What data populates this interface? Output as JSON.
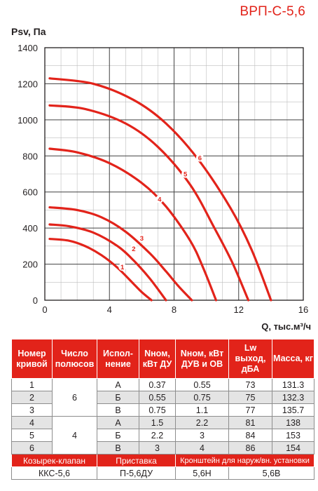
{
  "title": "ВРП-С-5,6",
  "chart_data": {
    "type": "line",
    "ylabel": "Psv, Па",
    "xlabel": "Q, тыс.м³/ч",
    "xlim": [
      0,
      16
    ],
    "ylim": [
      0,
      1400
    ],
    "xticks": [
      "0",
      "4",
      "8",
      "12",
      "16"
    ],
    "yticks": [
      "0",
      "200",
      "400",
      "600",
      "800",
      "1000",
      "1200",
      "1400"
    ],
    "grid": true,
    "series": [
      {
        "name": "1",
        "x": [
          0.3,
          1.5,
          2.5,
          3.5,
          4.5,
          5.5,
          6.0,
          6.6
        ],
        "y": [
          340,
          330,
          300,
          250,
          180,
          90,
          45,
          0
        ],
        "label_x": 4.8,
        "label_y": 185
      },
      {
        "name": "2",
        "x": [
          0.3,
          1.5,
          3.0,
          4.5,
          5.5,
          6.5,
          7.5
        ],
        "y": [
          420,
          410,
          375,
          300,
          220,
          120,
          0
        ],
        "label_x": 5.5,
        "label_y": 285
      },
      {
        "name": "3",
        "x": [
          0.3,
          2.0,
          3.5,
          5.0,
          6.5,
          7.5,
          8.3,
          9.1
        ],
        "y": [
          515,
          500,
          460,
          380,
          260,
          160,
          75,
          0
        ],
        "label_x": 6.0,
        "label_y": 345
      },
      {
        "name": "4",
        "x": [
          0.3,
          2.0,
          4.0,
          6.0,
          7.5,
          9.0,
          9.8,
          10.6
        ],
        "y": [
          840,
          820,
          760,
          650,
          520,
          330,
          180,
          0
        ],
        "label_x": 7.1,
        "label_y": 560
      },
      {
        "name": "5",
        "x": [
          0.3,
          2.5,
          5.0,
          7.0,
          9.0,
          10.5,
          11.6,
          12.6
        ],
        "y": [
          1080,
          1060,
          980,
          850,
          640,
          400,
          210,
          0
        ],
        "label_x": 8.7,
        "label_y": 700
      },
      {
        "name": "6",
        "x": [
          0.3,
          3.0,
          5.5,
          7.5,
          9.5,
          11.5,
          12.8,
          14.0
        ],
        "y": [
          1230,
          1200,
          1110,
          980,
          780,
          510,
          280,
          0
        ],
        "label_x": 9.6,
        "label_y": 790
      }
    ]
  },
  "table": {
    "headers": [
      "Номер кривой",
      "Число полюсов",
      "Испол- нение",
      "Nном, кВт ДУ",
      "Nном, кВт ДУВ и ОВ",
      "Lw выход, дБА",
      "Масса, кг"
    ],
    "rows": [
      [
        "1",
        "А",
        "0.37",
        "0.55",
        "73",
        "131.3"
      ],
      [
        "2",
        "Б",
        "0.55",
        "0.75",
        "75",
        "132.3"
      ],
      [
        "3",
        "В",
        "0.75",
        "1.1",
        "77",
        "135.7"
      ],
      [
        "4",
        "А",
        "1.5",
        "2.2",
        "81",
        "138"
      ],
      [
        "5",
        "Б",
        "2.2",
        "3",
        "84",
        "153"
      ],
      [
        "6",
        "В",
        "3",
        "4",
        "86",
        "154"
      ]
    ],
    "poles": [
      "6",
      "4"
    ],
    "accessories": {
      "labels": [
        "Козырек-клапан",
        "Приставка",
        "Кронштейн для наруж/вн. установки"
      ],
      "values": [
        "ККС-5,6",
        "П-5,6ДУ",
        "5,6Н",
        "5,6В"
      ]
    }
  },
  "colors": {
    "accent": "#e2231a",
    "grid": "#bdbdbd",
    "row_shade": "#e4e4e4"
  }
}
